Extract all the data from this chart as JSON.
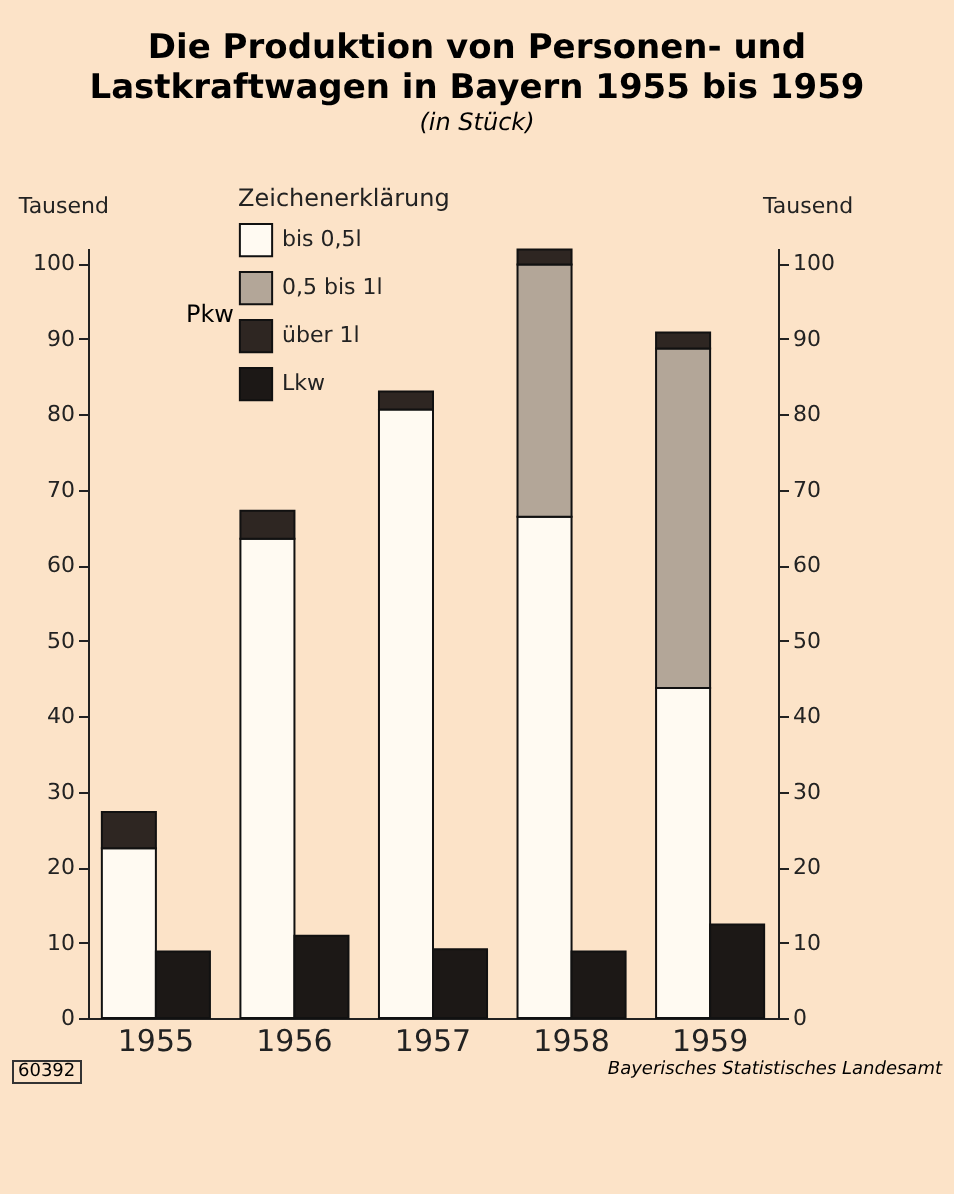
{
  "chart_data": {
    "type": "bar",
    "title": "Die Produktion von Personen- und Lastkraftwagen in Bayern 1955 bis 1959",
    "subtitle": "(in Stück)",
    "ylabel": "Tausend",
    "y2label": "Tausend",
    "legend_title": "Zeichenerklärung",
    "categories": [
      "1955",
      "1956",
      "1957",
      "1958",
      "1959"
    ],
    "series": [
      {
        "name": "bis 0,5l",
        "color": "#fffaf2",
        "values": [
          22.5,
          63.5,
          80.6,
          66.4,
          43.7
        ]
      },
      {
        "name": "0,5 bis 1l",
        "color": "#b3a698",
        "values": [
          0,
          0,
          0,
          33.4,
          45.0
        ]
      },
      {
        "name": "über 1l",
        "color": "#2e2622",
        "values": [
          4.8,
          3.7,
          2.4,
          2.0,
          2.1
        ]
      },
      {
        "name": "Lkw",
        "color": "#1c1816",
        "values": [
          8.8,
          10.9,
          9.1,
          8.8,
          12.4
        ],
        "axis": "y2"
      }
    ],
    "stacked": true,
    "ylim": [
      0,
      102
    ],
    "yticks": [
      0,
      10,
      20,
      30,
      40,
      50,
      60,
      70,
      80,
      90,
      100
    ],
    "y2lim": [
      0,
      102
    ],
    "y2ticks": [
      0,
      10,
      20,
      30,
      40,
      50,
      60,
      70,
      80,
      90,
      100
    ],
    "grid": false,
    "legend": "top left",
    "annotations": [
      "Pkw",
      "60392",
      "Bayerisches Statistisches Landesamt"
    ]
  }
}
